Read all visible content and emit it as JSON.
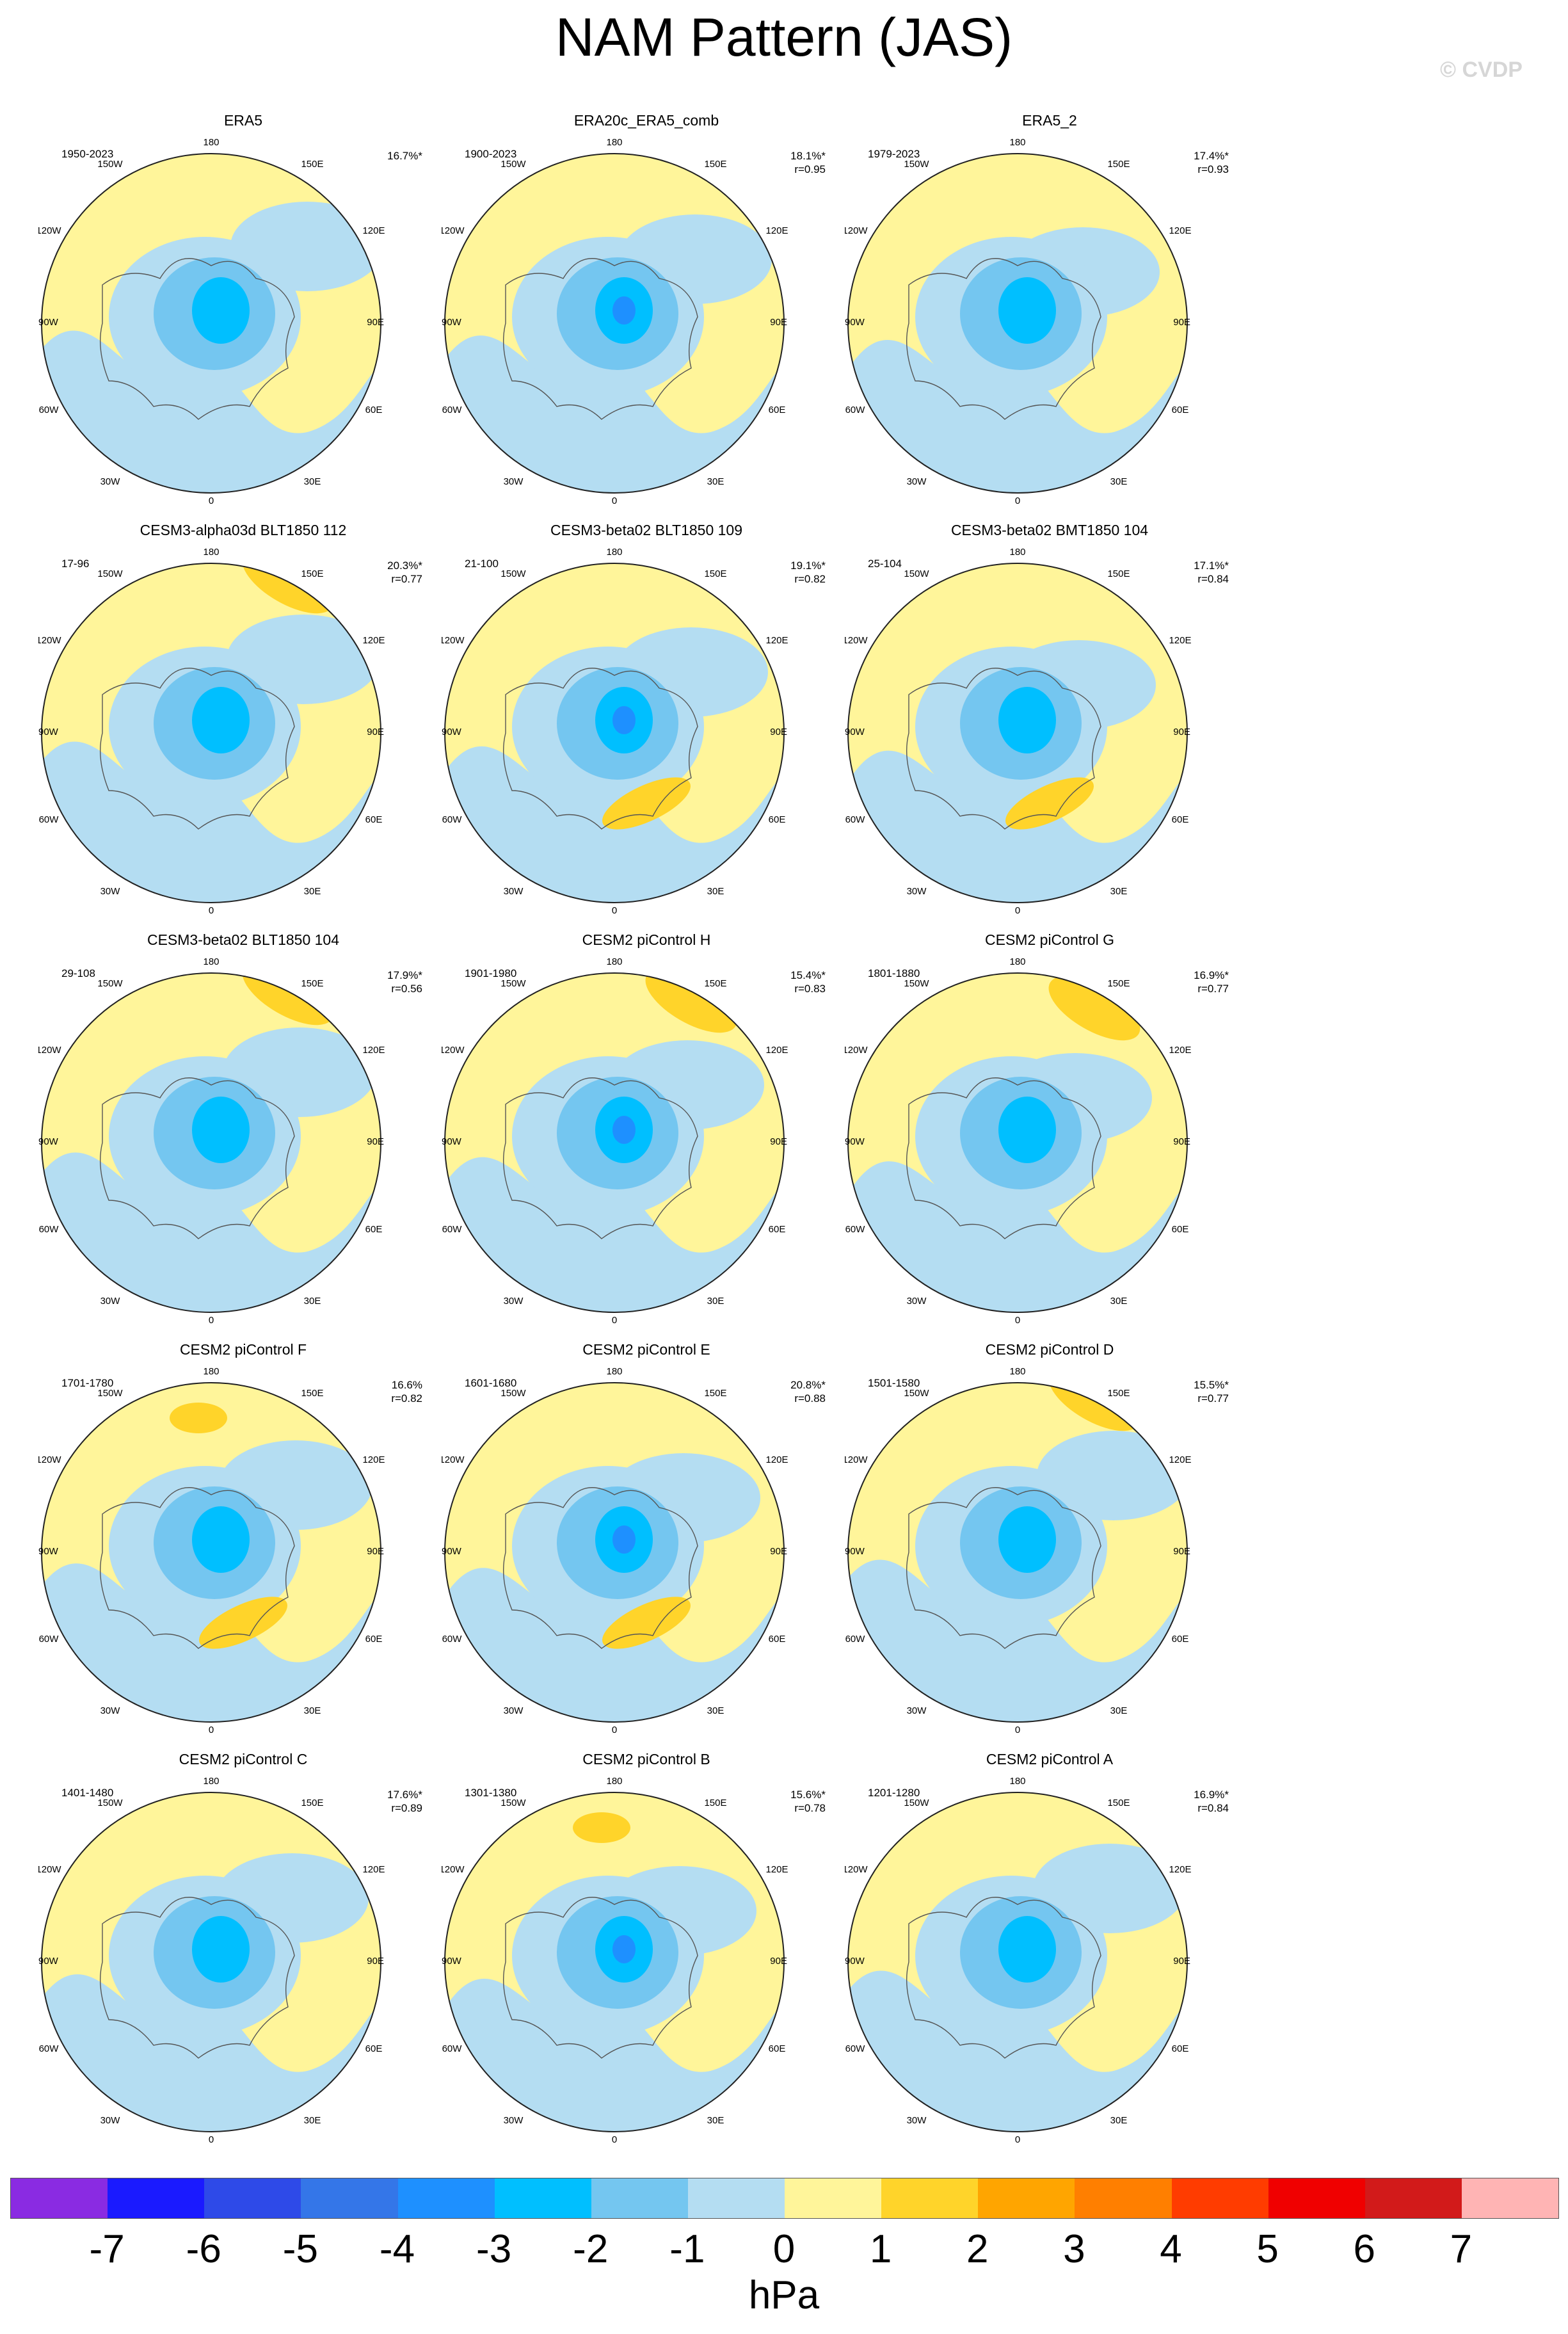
{
  "title": "NAM Pattern (JAS)",
  "watermark": "© CVDP",
  "lon_labels": {
    "top": "180",
    "tl": "150W",
    "tr": "150E",
    "l1": "120W",
    "r1": "120E",
    "l2": "90W",
    "r2": "90E",
    "l3": "60W",
    "r3": "60E",
    "bl": "30W",
    "br": "30E",
    "bottom": "0"
  },
  "panels": [
    {
      "title": "ERA5",
      "period": "1950-2023",
      "variance": "16.7%*",
      "corr": ""
    },
    {
      "title": "ERA20c_ERA5_comb",
      "period": "1900-2023",
      "variance": "18.1%*",
      "corr": "r=0.95"
    },
    {
      "title": "ERA5_2",
      "period": "1979-2023",
      "variance": "17.4%*",
      "corr": "r=0.93"
    },
    {
      "title": "CESM3-alpha03d BLT1850 112",
      "period": "17-96",
      "variance": "20.3%*",
      "corr": "r=0.77"
    },
    {
      "title": "CESM3-beta02 BLT1850 109",
      "period": "21-100",
      "variance": "19.1%*",
      "corr": "r=0.82"
    },
    {
      "title": "CESM3-beta02 BMT1850 104",
      "period": "25-104",
      "variance": "17.1%*",
      "corr": "r=0.84"
    },
    {
      "title": "CESM3-beta02 BLT1850 104",
      "period": "29-108",
      "variance": "17.9%*",
      "corr": "r=0.56"
    },
    {
      "title": "CESM2 piControl H",
      "period": "1901-1980",
      "variance": "15.4%*",
      "corr": "r=0.83"
    },
    {
      "title": "CESM2 piControl G",
      "period": "1801-1880",
      "variance": "16.9%*",
      "corr": "r=0.77"
    },
    {
      "title": "CESM2 piControl F",
      "period": "1701-1780",
      "variance": "16.6%",
      "corr": "r=0.82"
    },
    {
      "title": "CESM2 piControl E",
      "period": "1601-1680",
      "variance": "20.8%*",
      "corr": "r=0.88"
    },
    {
      "title": "CESM2 piControl D",
      "period": "1501-1580",
      "variance": "15.5%*",
      "corr": "r=0.77"
    },
    {
      "title": "CESM2 piControl C",
      "period": "1401-1480",
      "variance": "17.6%*",
      "corr": "r=0.89"
    },
    {
      "title": "CESM2 piControl B",
      "period": "1301-1380",
      "variance": "15.6%*",
      "corr": "r=0.78"
    },
    {
      "title": "CESM2 piControl A",
      "period": "1201-1280",
      "variance": "16.9%*",
      "corr": "r=0.84"
    }
  ],
  "colorbar": {
    "unit": "hPa",
    "ticks": [
      "-7",
      "-6",
      "-5",
      "-4",
      "-3",
      "-2",
      "-1",
      "0",
      "1",
      "2",
      "3",
      "4",
      "5",
      "6",
      "7"
    ],
    "colors": [
      "#8a2be2",
      "#1a1aff",
      "#2e4ae8",
      "#3476e8",
      "#1e90ff",
      "#00bfff",
      "#74c6f0",
      "#b4ddf2",
      "#fff59a",
      "#ffd42a",
      "#ffa500",
      "#ff7f00",
      "#ff3c00",
      "#f00000",
      "#d21a1a",
      "#ffb4b4"
    ]
  }
}
